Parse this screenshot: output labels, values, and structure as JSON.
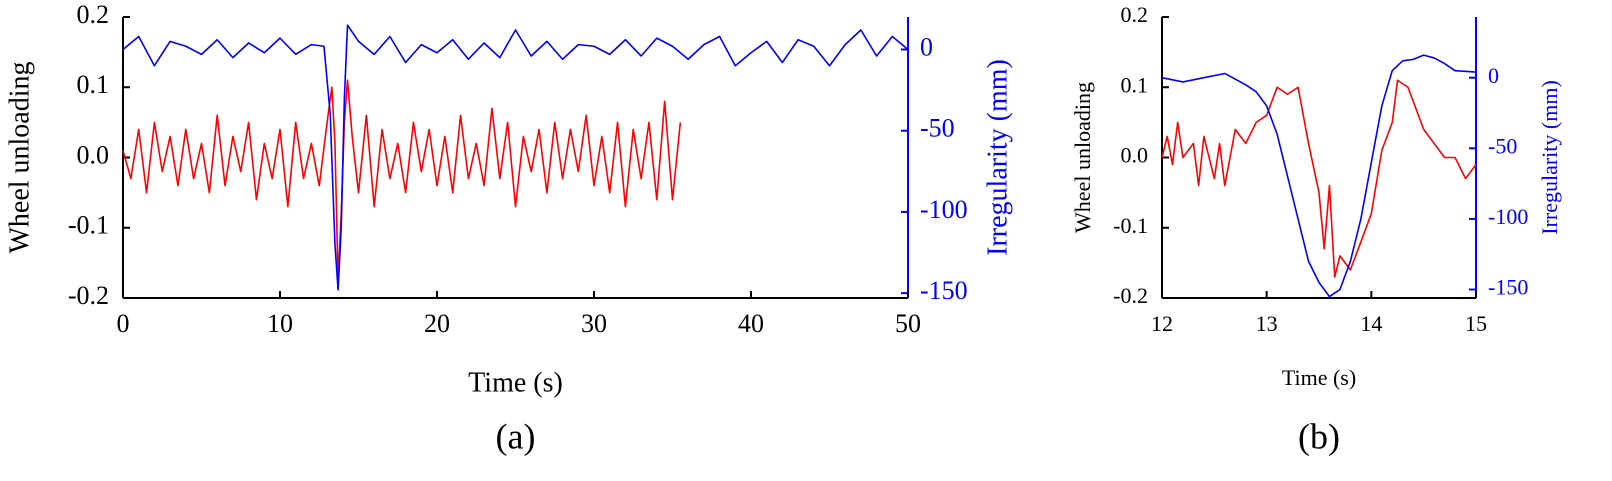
{
  "chart_data": [
    {
      "type": "line",
      "caption": "(a)",
      "x_label": "Time (s)",
      "y_label": "Wheel unloading",
      "y2_label": "Irregularity (mm)",
      "xlim": [
        0,
        50
      ],
      "xticks": [
        0,
        10,
        20,
        30,
        40,
        50
      ],
      "ylim": [
        -0.2,
        0.2
      ],
      "yticks": [
        -0.2,
        -0.1,
        {
          "value": 0,
          "label": "0.0"
        },
        0.1,
        0.2
      ],
      "y2lim": [
        -153,
        20
      ],
      "y2ticks": [
        -150,
        -100,
        -50,
        0
      ],
      "series": [
        {
          "color": "#ff0000",
          "x": [
            0,
            0.5,
            1,
            1.5,
            2,
            2.5,
            3,
            3.5,
            4,
            4.5,
            5,
            5.5,
            6,
            6.5,
            7,
            7.5,
            8,
            8.5,
            9,
            9.5,
            10,
            10.5,
            11,
            11.5,
            12,
            12.5,
            13,
            13.3,
            13.5,
            13.7,
            13.9,
            14.1,
            14.3,
            14.6,
            15,
            15.5,
            16,
            16.5,
            17,
            17.5,
            18,
            18.5,
            19,
            19.5,
            20,
            20.5,
            21,
            21.5,
            22,
            22.5,
            23,
            23.5,
            24,
            24.5,
            25,
            25.5,
            26,
            26.5,
            27,
            27.5,
            28,
            28.5,
            29,
            29.5,
            30,
            30.5,
            31,
            31.5,
            32,
            32.5,
            33,
            33.5,
            34,
            34.5,
            35,
            35.5
          ],
          "values": [
            0.01,
            -0.03,
            0.04,
            -0.05,
            0.05,
            -0.02,
            0.03,
            -0.04,
            0.04,
            -0.03,
            0.02,
            -0.05,
            0.06,
            -0.04,
            0.03,
            -0.02,
            0.05,
            -0.06,
            0.02,
            -0.03,
            0.04,
            -0.07,
            0.05,
            -0.03,
            0.02,
            -0.04,
            0.05,
            0.1,
            0.02,
            -0.175,
            -0.08,
            0.05,
            0.11,
            0.03,
            -0.05,
            0.06,
            -0.07,
            0.04,
            -0.03,
            0.02,
            -0.05,
            0.05,
            -0.02,
            0.04,
            -0.04,
            0.03,
            -0.05,
            0.06,
            -0.03,
            0.02,
            -0.04,
            0.07,
            -0.03,
            0.05,
            -0.07,
            0.03,
            -0.02,
            0.04,
            -0.05,
            0.05,
            -0.03,
            0.04,
            -0.02,
            0.06,
            -0.04,
            0.03,
            -0.05,
            0.05,
            -0.07,
            0.04,
            -0.03,
            0.05,
            -0.06,
            0.08,
            -0.06,
            0.05
          ]
        },
        {
          "color": "#0000ff",
          "axis": "y2",
          "x": [
            0,
            1,
            2,
            3,
            4,
            5,
            6,
            7,
            8,
            9,
            10,
            11,
            12,
            12.8,
            13.2,
            13.5,
            13.7,
            13.9,
            14.1,
            14.3,
            15,
            16,
            17,
            18,
            19,
            20,
            21,
            22,
            23,
            24,
            25,
            26,
            27,
            28,
            29,
            30,
            31,
            32,
            33,
            34,
            35,
            36,
            37,
            38,
            39,
            40,
            41,
            42,
            43,
            44,
            45,
            46,
            47,
            48,
            49,
            50
          ],
          "values": [
            0,
            8,
            -10,
            5,
            2,
            -3,
            6,
            -5,
            4,
            -2,
            7,
            -3,
            3,
            2,
            -40,
            -120,
            -148,
            -110,
            -30,
            15,
            5,
            -3,
            8,
            -8,
            3,
            -2,
            6,
            -6,
            4,
            -5,
            12,
            -4,
            5,
            -6,
            3,
            2,
            -3,
            6,
            -4,
            7,
            2,
            -6,
            3,
            8,
            -10,
            -2,
            5,
            -8,
            6,
            2,
            -10,
            3,
            12,
            -4,
            8,
            0
          ]
        }
      ]
    },
    {
      "type": "line",
      "caption": "(b)",
      "x_label": "Time (s)",
      "y_label": "Wheel unloading",
      "y2_label": "Irregularity (mm)",
      "xlim": [
        12,
        15
      ],
      "xticks": [
        12,
        13,
        14,
        15
      ],
      "ylim": [
        -0.2,
        0.2
      ],
      "yticks": [
        -0.2,
        -0.1,
        {
          "value": 0,
          "label": "0.0"
        },
        0.1,
        0.2
      ],
      "y2lim": [
        -156,
        43
      ],
      "y2ticks": [
        -150,
        -100,
        -50,
        0
      ],
      "series": [
        {
          "color": "#ff0000",
          "x": [
            12,
            12.05,
            12.1,
            12.15,
            12.2,
            12.3,
            12.35,
            12.4,
            12.5,
            12.55,
            12.6,
            12.7,
            12.8,
            12.9,
            13,
            13.1,
            13.2,
            13.3,
            13.4,
            13.5,
            13.55,
            13.6,
            13.65,
            13.7,
            13.8,
            13.9,
            14,
            14.1,
            14.2,
            14.25,
            14.35,
            14.5,
            14.6,
            14.7,
            14.8,
            14.9,
            15
          ],
          "values": [
            0,
            0.03,
            -0.01,
            0.05,
            0,
            0.02,
            -0.04,
            0.03,
            -0.03,
            0.02,
            -0.04,
            0.04,
            0.02,
            0.05,
            0.06,
            0.1,
            0.09,
            0.1,
            0.02,
            -0.05,
            -0.13,
            -0.04,
            -0.17,
            -0.14,
            -0.16,
            -0.12,
            -0.08,
            0.01,
            0.05,
            0.11,
            0.1,
            0.04,
            0.02,
            0,
            0,
            -0.03,
            -0.01
          ]
        },
        {
          "color": "#0000ff",
          "axis": "y2",
          "x": [
            12,
            12.2,
            12.4,
            12.6,
            12.8,
            12.9,
            13,
            13.1,
            13.2,
            13.3,
            13.4,
            13.5,
            13.6,
            13.7,
            13.8,
            13.9,
            14,
            14.1,
            14.2,
            14.3,
            14.4,
            14.5,
            14.6,
            14.7,
            14.8,
            15
          ],
          "values": [
            0,
            -3,
            0,
            3,
            -5,
            -10,
            -20,
            -40,
            -70,
            -100,
            -130,
            -145,
            -155,
            -150,
            -130,
            -100,
            -60,
            -20,
            5,
            12,
            13,
            16,
            14,
            10,
            5,
            4
          ]
        }
      ]
    }
  ]
}
